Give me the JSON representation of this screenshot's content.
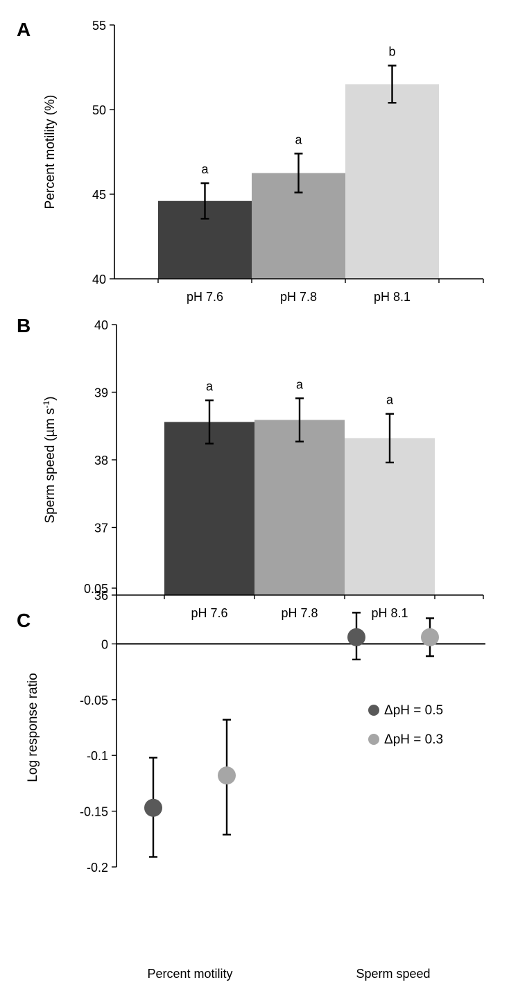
{
  "chart_data": [
    {
      "panel": "A",
      "type": "bar",
      "categories": [
        "pH 7.6",
        "pH 7.8",
        "pH 8.1"
      ],
      "values": [
        44.6,
        46.25,
        51.5
      ],
      "errors": [
        1.05,
        1.15,
        1.1
      ],
      "significance": [
        "a",
        "a",
        "b"
      ],
      "colors": [
        "#404040",
        "#a3a3a3",
        "#d9d9d9"
      ],
      "ylabel": "Percent motility (%)",
      "ylim": [
        40,
        55
      ],
      "yticks": [
        "40",
        "45",
        "50",
        "55"
      ],
      "grid": false
    },
    {
      "panel": "B",
      "type": "bar",
      "categories": [
        "pH 7.6",
        "pH 7.8",
        "pH 8.1"
      ],
      "values": [
        38.56,
        38.59,
        38.32
      ],
      "errors": [
        0.32,
        0.32,
        0.36
      ],
      "significance": [
        "a",
        "a",
        "a"
      ],
      "colors": [
        "#404040",
        "#a3a3a3",
        "#d9d9d9"
      ],
      "ylabel": "Sperm speed (µm s",
      "ylabel_sup": "-1",
      "ylabel_end": ")",
      "ylim": [
        36,
        40
      ],
      "yticks": [
        "36",
        "37",
        "38",
        "39",
        "40"
      ],
      "grid": false
    },
    {
      "panel": "C",
      "type": "scatter",
      "categories": [
        "Percent motility",
        "Sperm speed"
      ],
      "series": [
        {
          "name": "ΔpH = 0.5",
          "color": "#595959",
          "values": [
            -0.147,
            0.006
          ],
          "err_low": [
            -0.191,
            -0.014
          ],
          "err_high": [
            -0.102,
            0.028
          ]
        },
        {
          "name": "ΔpH = 0.3",
          "color": "#a6a6a6",
          "values": [
            -0.118,
            0.006
          ],
          "err_low": [
            -0.171,
            -0.011
          ],
          "err_high": [
            -0.068,
            0.023
          ]
        }
      ],
      "ylabel": "Log response ratio",
      "ylim": [
        -0.2,
        0.05
      ],
      "yticks": [
        "-0.2",
        "-0.15",
        "-0.1",
        "-0.05",
        "0",
        "0.05"
      ],
      "reference_line": 0,
      "legend_position": "right",
      "grid": false
    }
  ]
}
